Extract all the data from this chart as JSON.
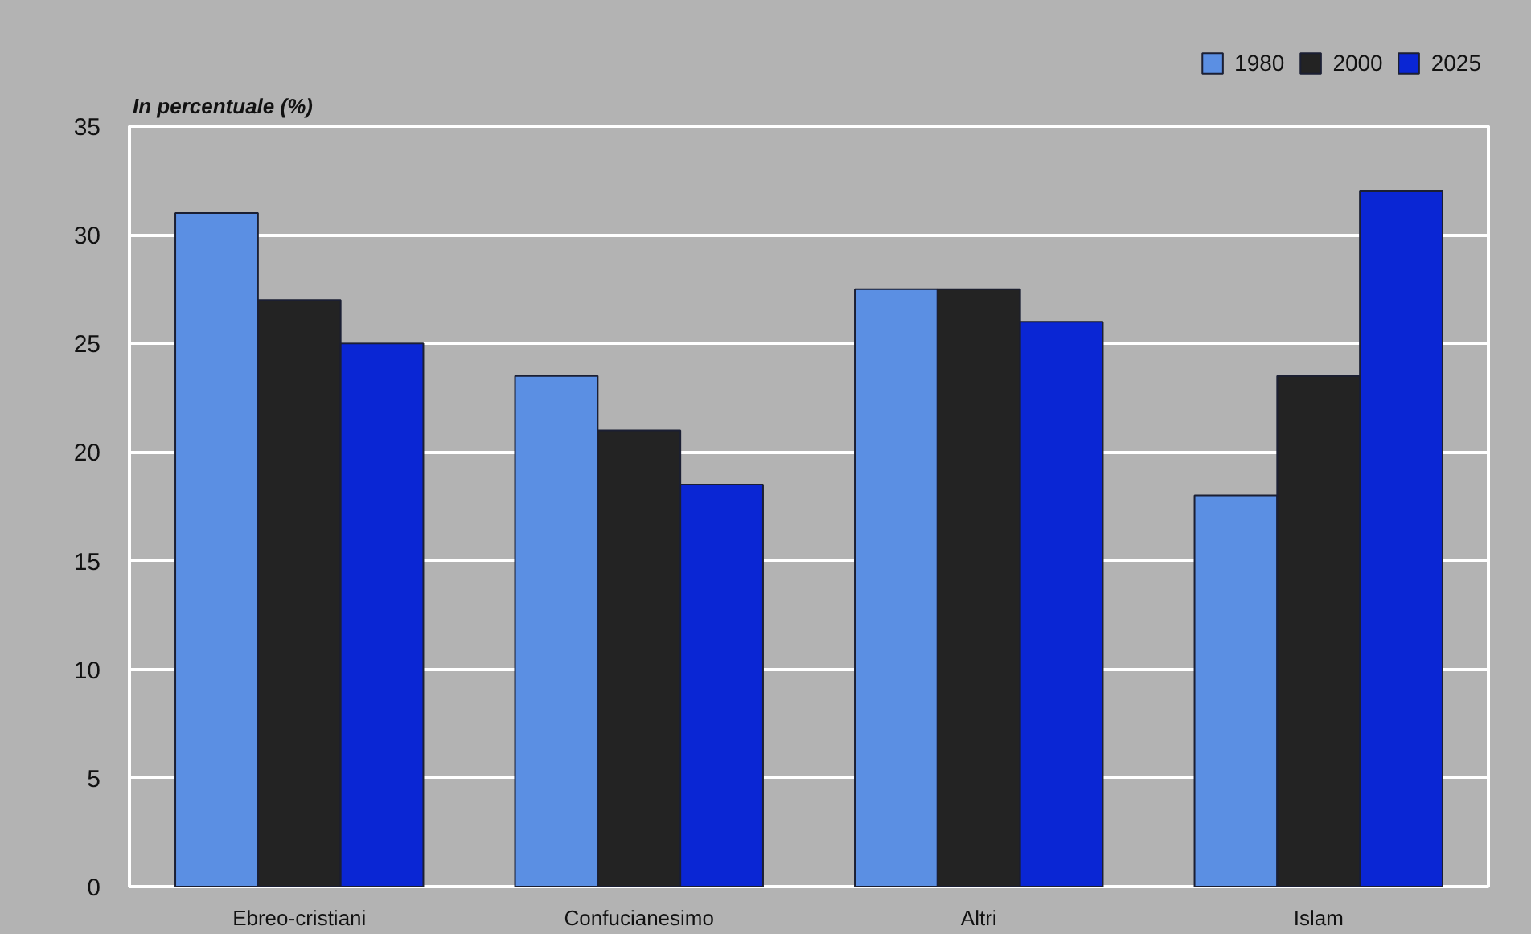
{
  "chart_data": {
    "type": "bar",
    "ylabel": "In percentuale (%)",
    "categories": [
      "Ebreo-cristiani",
      "Confucianesimo",
      "Altri",
      "Islam"
    ],
    "series": [
      {
        "name": "1980",
        "color": "#5b8fe3",
        "values": [
          31,
          23.5,
          27.5,
          18
        ]
      },
      {
        "name": "2000",
        "color": "#232323",
        "values": [
          27,
          21,
          27.5,
          23.5
        ]
      },
      {
        "name": "2025",
        "color": "#0a26d4",
        "values": [
          25,
          18.5,
          26,
          32
        ]
      }
    ],
    "ylim": [
      0,
      35
    ],
    "yticks": [
      0,
      5,
      10,
      15,
      20,
      25,
      30,
      35
    ],
    "grid": "y",
    "legend": "top right"
  }
}
